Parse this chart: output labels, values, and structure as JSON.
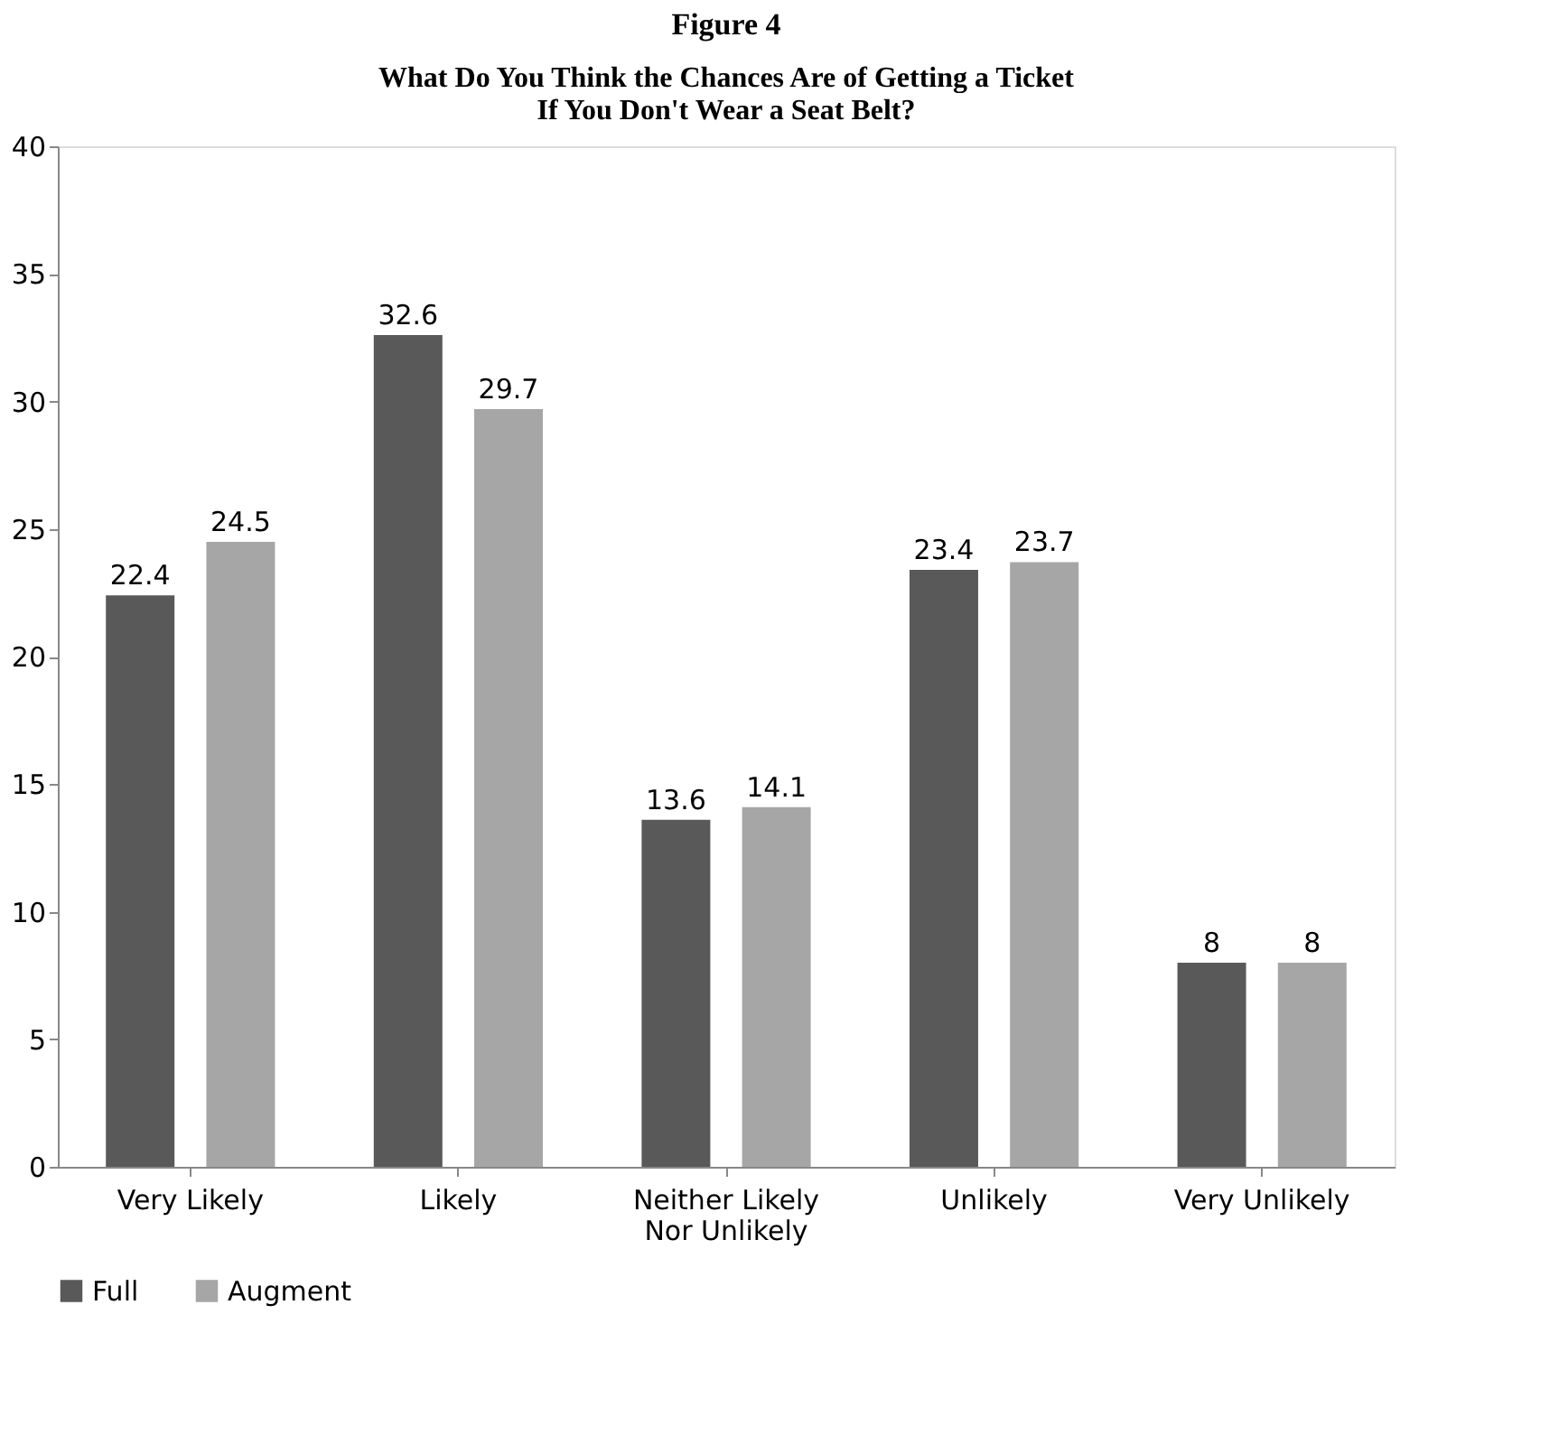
{
  "chart_data": {
    "type": "bar",
    "title": "Figure 4",
    "subtitle": "What Do You Think the Chances Are of Getting a Ticket\nIf You Don't Wear a Seat Belt?",
    "categories": [
      "Very Likely",
      "Likely",
      "Neither Likely\nNor Unlikely",
      "Unlikely",
      "Very Unlikely"
    ],
    "series": [
      {
        "name": "Full",
        "color": "#595959",
        "values": [
          22.4,
          32.6,
          13.6,
          23.4,
          8
        ]
      },
      {
        "name": "Augment",
        "color": "#a6a6a6",
        "values": [
          24.5,
          29.7,
          14.1,
          23.7,
          8
        ]
      }
    ],
    "ylim": [
      0,
      40
    ],
    "yticks": [
      0,
      5,
      10,
      15,
      20,
      25,
      30,
      35,
      40
    ],
    "grid": false,
    "legend": "bottom",
    "data_labels": true
  }
}
